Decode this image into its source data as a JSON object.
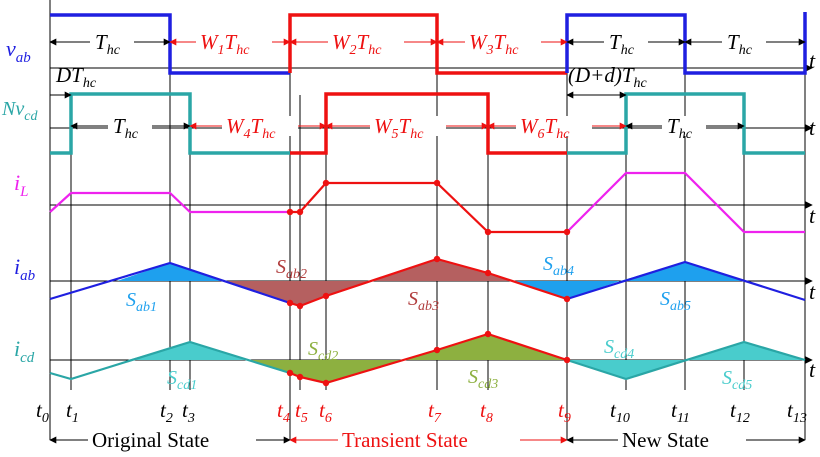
{
  "colors": {
    "blue": "#1f1fe0",
    "red": "#ee1111",
    "teal": "#2aa6a6",
    "magenta": "#ee22ee",
    "sky": "#1ea0ee",
    "dark_red": "#b03c3c",
    "olive": "#8db040",
    "aqua_fill": "#49cccc",
    "black": "#000000"
  },
  "signals": {
    "vab": {
      "base": "v",
      "sub": "ab"
    },
    "nvcd": {
      "pre": "N",
      "base": "v",
      "sub": "cd"
    },
    "il": {
      "base": "i",
      "sub": "L"
    },
    "iab": {
      "base": "i",
      "sub": "ab"
    },
    "icd": {
      "base": "i",
      "sub": "cd"
    },
    "t_axis": "t"
  },
  "durations": {
    "hc": {
      "base": "T",
      "sub": "hc"
    },
    "w1": {
      "pre": "W",
      "pre_sub": "1",
      "base": "T",
      "sub": "hc"
    },
    "w2": {
      "pre": "W",
      "pre_sub": "2",
      "base": "T",
      "sub": "hc"
    },
    "w3": {
      "pre": "W",
      "pre_sub": "3",
      "base": "T",
      "sub": "hc"
    },
    "w4": {
      "pre": "W",
      "pre_sub": "4",
      "base": "T",
      "sub": "hc"
    },
    "w5": {
      "pre": "W",
      "pre_sub": "5",
      "base": "T",
      "sub": "hc"
    },
    "w6": {
      "pre": "W",
      "pre_sub": "6",
      "base": "T",
      "sub": "hc"
    },
    "dthc": {
      "pre": "D",
      "base": "T",
      "sub": "hc"
    },
    "ddthc": {
      "pre": "(D+d)",
      "base": "T",
      "sub": "hc"
    }
  },
  "areas": {
    "sab1": {
      "base": "S",
      "sub": "ab1"
    },
    "sab2": {
      "base": "S",
      "sub": "ab2"
    },
    "sab3": {
      "base": "S",
      "sub": "ab3"
    },
    "sab4": {
      "base": "S",
      "sub": "ab4"
    },
    "sab5": {
      "base": "S",
      "sub": "ab5"
    },
    "scd1": {
      "base": "S",
      "sub": "cd1"
    },
    "scd2": {
      "base": "S",
      "sub": "cd2"
    },
    "scd3": {
      "base": "S",
      "sub": "cd3"
    },
    "scd4": {
      "base": "S",
      "sub": "cd4"
    },
    "scd5": {
      "base": "S",
      "sub": "cd5"
    }
  },
  "time_marks": {
    "t0": {
      "base": "t",
      "sub": "0"
    },
    "t1": {
      "base": "t",
      "sub": "1"
    },
    "t2": {
      "base": "t",
      "sub": "2"
    },
    "t3": {
      "base": "t",
      "sub": "3"
    },
    "t4": {
      "base": "t",
      "sub": "4"
    },
    "t5": {
      "base": "t",
      "sub": "5"
    },
    "t6": {
      "base": "t",
      "sub": "6"
    },
    "t7": {
      "base": "t",
      "sub": "7"
    },
    "t8": {
      "base": "t",
      "sub": "8"
    },
    "t9": {
      "base": "t",
      "sub": "9"
    },
    "t10": {
      "base": "t",
      "sub": "10"
    },
    "t11": {
      "base": "t",
      "sub": "11"
    },
    "t12": {
      "base": "t",
      "sub": "12"
    },
    "t13": {
      "base": "t",
      "sub": "13"
    }
  },
  "states": {
    "original": "Original State",
    "transient": "Transient State",
    "new": "New State"
  }
}
